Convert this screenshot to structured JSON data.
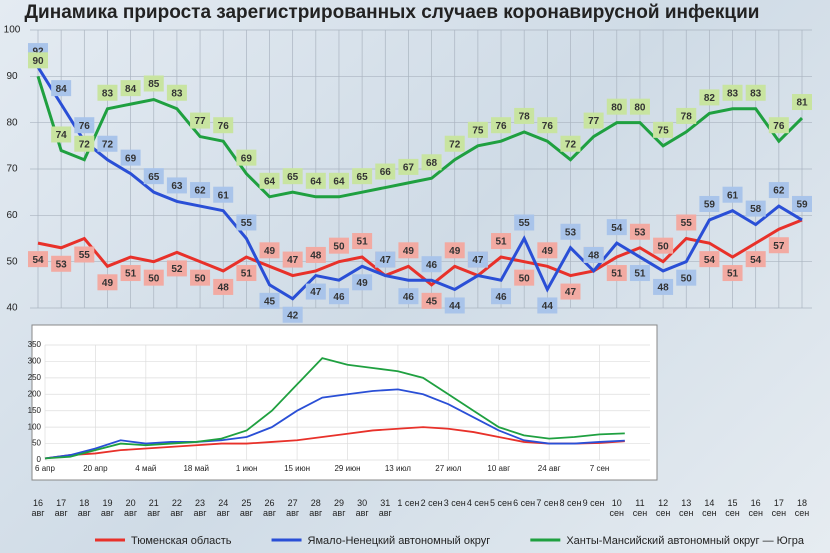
{
  "chart_data": [
    {
      "type": "line",
      "title": "Динамика прироста зарегистрированных случаев коронавирусной инфекции",
      "categories": [
        "16 авг",
        "17 авг",
        "18 авг",
        "19 авг",
        "20 авг",
        "21 авг",
        "22 авг",
        "23 авг",
        "24 авг",
        "25 авг",
        "26 авг",
        "27 авг",
        "28 авг",
        "29 авг",
        "30 авг",
        "31 авг",
        "1 сен",
        "2 сен",
        "3 сен",
        "4 сен",
        "5 сен",
        "6 сен",
        "7 сен",
        "8 сен",
        "9 сен",
        "10 сен",
        "11 сен",
        "12 сен",
        "13 сен",
        "14 сен",
        "15 сен",
        "16 сен",
        "17 сен",
        "18 сен"
      ],
      "series": [
        {
          "name": "Тюменская область",
          "color": "#e8312a",
          "label_color": "#f2aaa2",
          "values": [
            54,
            53,
            55,
            49,
            51,
            50,
            52,
            50,
            48,
            51,
            49,
            47,
            48,
            50,
            51,
            47,
            49,
            45,
            49,
            47,
            51,
            50,
            49,
            47,
            48,
            51,
            53,
            50,
            55,
            54,
            51,
            54,
            57,
            59
          ]
        },
        {
          "name": "Ямало-Ненецкий автономный округ",
          "color": "#2a4fd6",
          "label_color": "#a9c4ea",
          "values": [
            92,
            84,
            76,
            72,
            69,
            65,
            63,
            62,
            61,
            55,
            45,
            42,
            47,
            46,
            49,
            47,
            46,
            46,
            44,
            47,
            46,
            55,
            44,
            53,
            48,
            54,
            51,
            48,
            50,
            59,
            61,
            58,
            62,
            59
          ]
        },
        {
          "name": "Ханты-Мансийский автономный округ — Югра",
          "color": "#1fa040",
          "label_color": "#c8e4a0",
          "values": [
            90,
            74,
            72,
            83,
            84,
            85,
            83,
            77,
            76,
            69,
            64,
            65,
            64,
            64,
            65,
            66,
            67,
            68,
            72,
            75,
            76,
            78,
            76,
            72,
            77,
            80,
            80,
            75,
            78,
            82,
            83,
            83,
            76,
            81
          ]
        }
      ],
      "ylim": [
        40,
        100
      ],
      "yticks": [
        40,
        50,
        60,
        70,
        80,
        90,
        100
      ],
      "grid": true
    },
    {
      "type": "line",
      "x": [
        0,
        7,
        14,
        21,
        28,
        35,
        42,
        49,
        56,
        63,
        70,
        77,
        84,
        91,
        98,
        105,
        112,
        119,
        126,
        133,
        140,
        147,
        154,
        161
      ],
      "series": [
        {
          "color": "#e8312a",
          "values": [
            5,
            15,
            20,
            30,
            35,
            40,
            45,
            50,
            50,
            55,
            60,
            70,
            80,
            90,
            95,
            100,
            95,
            85,
            70,
            55,
            50,
            50,
            52,
            57
          ]
        },
        {
          "color": "#2a4fd6",
          "values": [
            5,
            15,
            35,
            60,
            50,
            55,
            55,
            60,
            70,
            100,
            150,
            190,
            200,
            210,
            215,
            200,
            170,
            130,
            90,
            60,
            50,
            50,
            55,
            59
          ]
        },
        {
          "color": "#1fa040",
          "values": [
            5,
            10,
            30,
            50,
            45,
            50,
            55,
            65,
            90,
            150,
            230,
            310,
            290,
            280,
            270,
            250,
            200,
            150,
            100,
            75,
            65,
            70,
            78,
            81
          ]
        }
      ],
      "xlim": [
        0,
        168
      ],
      "xticks": [
        {
          "value": 0,
          "label": "6 апр"
        },
        {
          "value": 14,
          "label": "20 апр"
        },
        {
          "value": 28,
          "label": "4 май"
        },
        {
          "value": 42,
          "label": "18 май"
        },
        {
          "value": 56,
          "label": "1 июн"
        },
        {
          "value": 70,
          "label": "15 июн"
        },
        {
          "value": 84,
          "label": "29 июн"
        },
        {
          "value": 98,
          "label": "13 июл"
        },
        {
          "value": 112,
          "label": "27 июл"
        },
        {
          "value": 126,
          "label": "10 авг"
        },
        {
          "value": 140,
          "label": "24 авг"
        },
        {
          "value": 154,
          "label": "7 сен"
        }
      ],
      "ylim": [
        0,
        350
      ],
      "yticks": [
        0,
        50,
        100,
        150,
        200,
        250,
        300,
        350
      ],
      "grid": true
    }
  ]
}
